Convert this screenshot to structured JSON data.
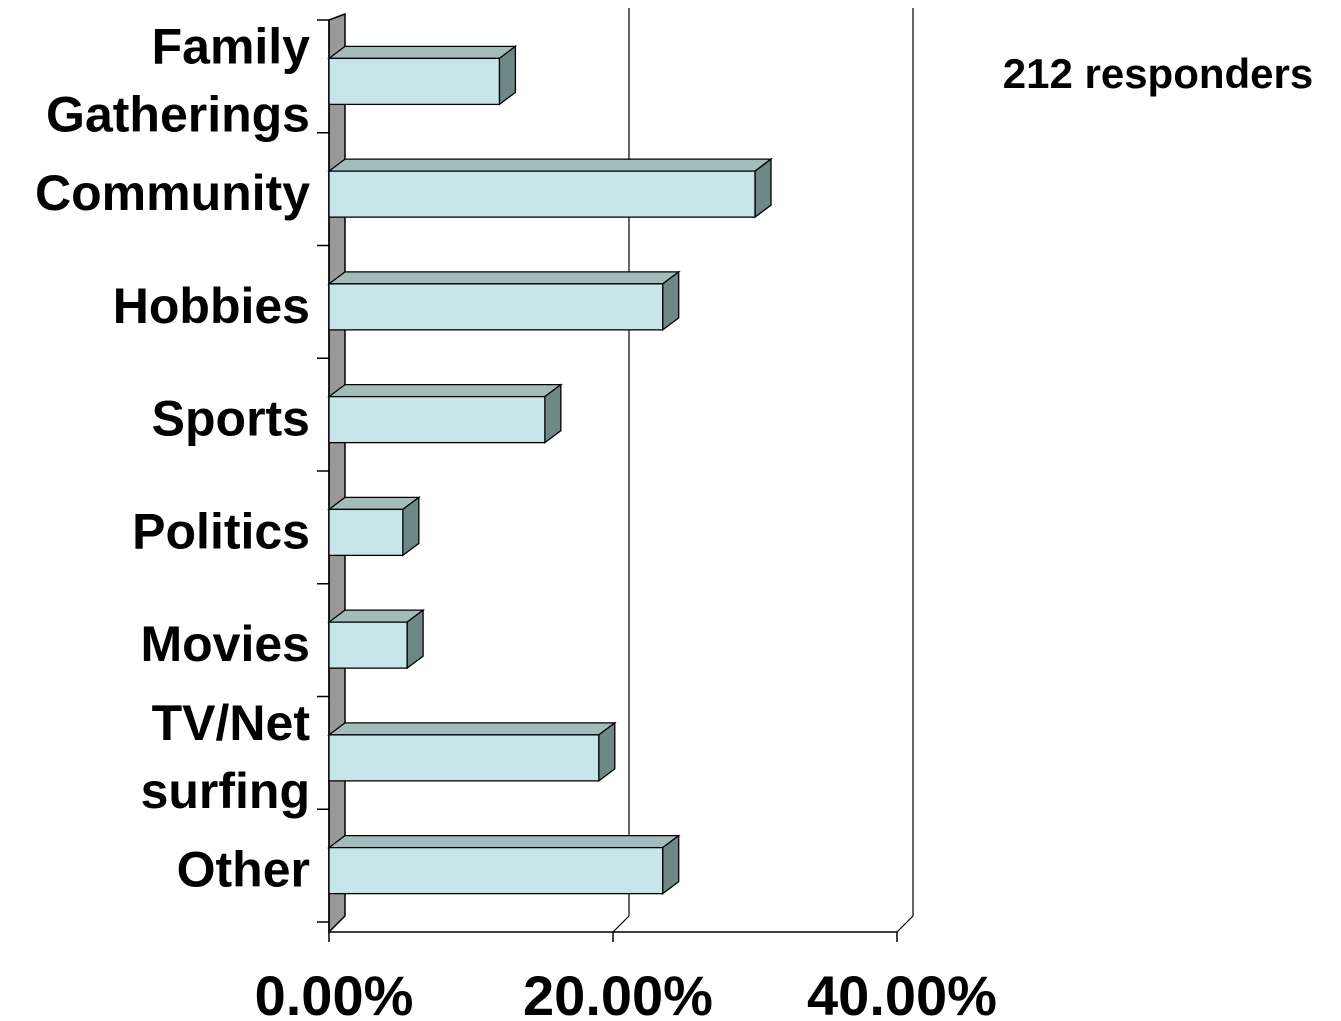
{
  "chart_data": {
    "type": "bar",
    "orientation": "horizontal",
    "style": "3d",
    "categories": [
      [
        "Family",
        "Gatherings"
      ],
      [
        "Community"
      ],
      [
        "Hobbies"
      ],
      [
        "Sports"
      ],
      [
        "Politics"
      ],
      [
        "Movies"
      ],
      [
        "TV/Net",
        "surfing"
      ],
      [
        "Other"
      ]
    ],
    "values": [
      12.0,
      30.0,
      23.5,
      15.2,
      5.2,
      5.5,
      19.0,
      23.5
    ],
    "value_unit": "percent",
    "xlim": [
      0,
      40
    ],
    "xticks": [
      0,
      20,
      40
    ],
    "xtick_labels": [
      "0.00%",
      "20.00%",
      "40.00%"
    ],
    "annotation": "212 responders",
    "grid": "vertical gridlines at major ticks",
    "legend": "none",
    "colors": {
      "bar_front": "#c8e6ea",
      "bar_top": "#a2bcbc",
      "bar_side": "#6e8888",
      "floor": "#999999"
    }
  }
}
